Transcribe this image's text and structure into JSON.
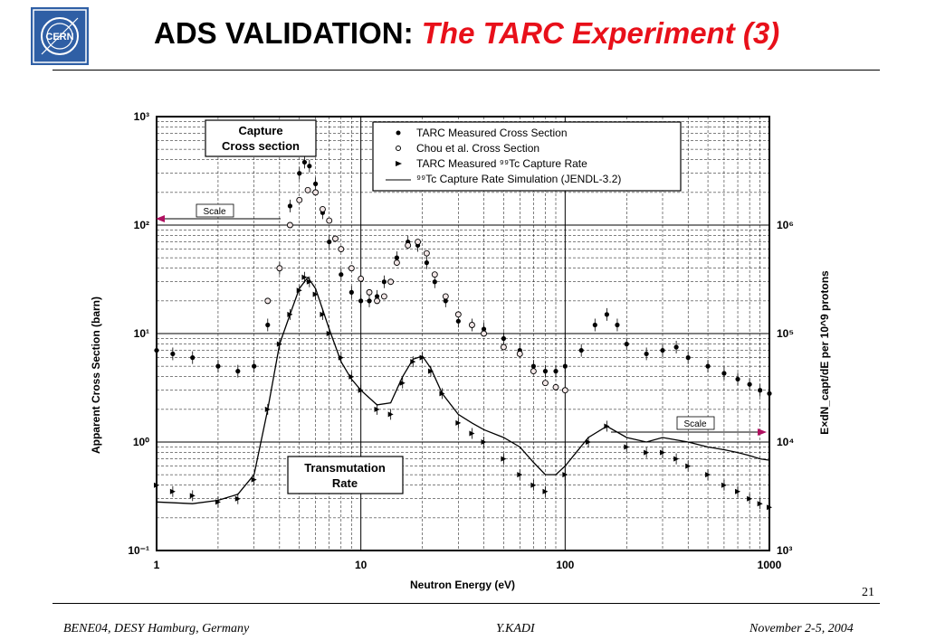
{
  "slide": {
    "logo_text": "CERN",
    "title_main": "ADS VALIDATION: ",
    "title_accent": "The TARC Experiment (3)",
    "page_number": "21",
    "footer_left": "BENE04, DESY Hamburg, Germany",
    "footer_center": "Y.KADI",
    "footer_right": "November 2-5, 2004",
    "accent_color": "#e8101a"
  },
  "chart_data": {
    "type": "scatter",
    "xlabel": "Neutron Energy (eV)",
    "ylabel": "Apparent Cross Section (barn)",
    "ylabel_right": "E×dN_capt/dE per 10^9 protons",
    "xscale": "log",
    "xlim": [
      1,
      1000
    ],
    "ylim": [
      0.1,
      1000
    ],
    "ylim_right": [
      1000,
      10000000
    ],
    "x_ticks": [
      "1",
      "10",
      "100",
      "1000"
    ],
    "y_ticks_left": [
      "10⁻¹",
      "10⁰",
      "10¹",
      "10²",
      "10³"
    ],
    "y_ticks_right": [
      "10³",
      "10⁴",
      "10⁵",
      "10⁶"
    ],
    "grid": true,
    "legend_position": "top-right",
    "annotations": {
      "capture_box": [
        "Capture",
        "Cross section"
      ],
      "transmutation_box": [
        "Transmutation",
        "Rate"
      ],
      "scale_left": "Scale",
      "scale_right": "Scale"
    },
    "series": [
      {
        "name": "TARC Measured Cross Section",
        "marker": "filled-circle",
        "x": [
          1.0,
          1.2,
          1.5,
          2.0,
          2.5,
          3.0,
          3.5,
          4.0,
          4.5,
          5.0,
          5.3,
          5.6,
          6.0,
          6.5,
          7.0,
          8.0,
          9.0,
          10.0,
          11.0,
          12.0,
          13.0,
          15.0,
          17.0,
          19.0,
          21.0,
          23.0,
          26.0,
          30.0,
          35.0,
          40.0,
          50.0,
          60.0,
          70.0,
          80.0,
          90.0,
          100.0,
          120.0,
          140.0,
          160.0,
          180.0,
          200.0,
          250.0,
          300.0,
          350.0,
          400.0,
          500.0,
          600.0,
          700.0,
          800.0,
          900.0,
          1000.0
        ],
        "y": [
          7.0,
          6.5,
          6.0,
          5.0,
          4.5,
          5.0,
          12.0,
          40.0,
          150.0,
          300.0,
          380.0,
          350.0,
          240.0,
          130.0,
          70.0,
          35.0,
          24.0,
          20.0,
          20.0,
          22.0,
          30.0,
          50.0,
          70.0,
          65.0,
          45.0,
          30.0,
          20.0,
          13.0,
          12.0,
          11.0,
          9.0,
          7.0,
          5.0,
          4.5,
          4.5,
          5.0,
          7.0,
          12.0,
          15.0,
          12.0,
          8.0,
          6.5,
          7.0,
          7.5,
          6.0,
          5.0,
          4.3,
          3.8,
          3.4,
          3.0,
          2.8
        ]
      },
      {
        "name": "Chou et al. Cross Section",
        "marker": "open-circle",
        "x": [
          3.5,
          4.0,
          4.5,
          5.0,
          5.5,
          6.0,
          6.5,
          7.0,
          7.5,
          8.0,
          9.0,
          10.0,
          11.0,
          12.0,
          13.0,
          14.0,
          15.0,
          17.0,
          19.0,
          21.0,
          23.0,
          26.0,
          30.0,
          35.0,
          40.0,
          50.0,
          60.0,
          70.0,
          80.0,
          90.0,
          100.0
        ],
        "y": [
          20.0,
          40.0,
          100.0,
          170.0,
          210.0,
          200.0,
          140.0,
          110.0,
          75.0,
          60.0,
          40.0,
          32.0,
          24.0,
          20.0,
          22.0,
          30.0,
          45.0,
          65.0,
          70.0,
          55.0,
          35.0,
          22.0,
          15.0,
          12.0,
          10.0,
          7.5,
          6.5,
          4.5,
          3.5,
          3.2,
          3.0
        ]
      },
      {
        "name": "TARC Measured ⁹⁹Tc Capture Rate",
        "marker": "triangle",
        "x": [
          1.0,
          1.2,
          1.5,
          2.0,
          2.5,
          3.0,
          3.5,
          4.0,
          4.5,
          5.0,
          5.3,
          5.6,
          6.0,
          6.5,
          7.0,
          8.0,
          9.0,
          10.0,
          12.0,
          14.0,
          16.0,
          18.0,
          20.0,
          22.0,
          25.0,
          30.0,
          35.0,
          40.0,
          50.0,
          60.0,
          70.0,
          80.0,
          100.0,
          130.0,
          160.0,
          200.0,
          250.0,
          300.0,
          350.0,
          400.0,
          500.0,
          600.0,
          700.0,
          800.0,
          900.0,
          1000.0
        ],
        "y": [
          4000,
          3500,
          3200,
          2800,
          3000,
          4500,
          20000,
          80000,
          150000,
          250000,
          330000,
          300000,
          230000,
          150000,
          100000,
          60000,
          40000,
          30000,
          20000,
          18000,
          35000,
          55000,
          60000,
          45000,
          28000,
          15000,
          12000,
          10000,
          7000,
          5000,
          4000,
          3500,
          5000,
          10000,
          14000,
          9000,
          8000,
          8000,
          7000,
          6000,
          5000,
          4000,
          3500,
          3000,
          2700,
          2500
        ]
      },
      {
        "name": "⁹⁹Tc Capture Rate Simulation (JENDL-3.2)",
        "marker": "line",
        "x": [
          1.0,
          1.5,
          2.0,
          2.5,
          3.0,
          3.5,
          4.0,
          4.5,
          5.0,
          5.5,
          6.0,
          7.0,
          8.0,
          9.0,
          10.0,
          12.0,
          14.0,
          16.0,
          18.0,
          20.0,
          22.0,
          25.0,
          30.0,
          35.0,
          40.0,
          50.0,
          60.0,
          70.0,
          80.0,
          90.0,
          100.0,
          130.0,
          160.0,
          200.0,
          250.0,
          300.0,
          400.0,
          500.0,
          600.0,
          700.0,
          800.0,
          900.0,
          1000.0
        ],
        "y": [
          2800,
          2700,
          2900,
          3300,
          5000,
          20000,
          80000,
          150000,
          260000,
          330000,
          260000,
          110000,
          55000,
          38000,
          30000,
          22000,
          23000,
          40000,
          58000,
          62000,
          48000,
          28000,
          18000,
          15000,
          13000,
          11000,
          9000,
          6500,
          5000,
          5000,
          6000,
          11000,
          14000,
          11000,
          10000,
          11000,
          10000,
          9000,
          8500,
          8000,
          7500,
          7000,
          6800
        ]
      }
    ]
  }
}
